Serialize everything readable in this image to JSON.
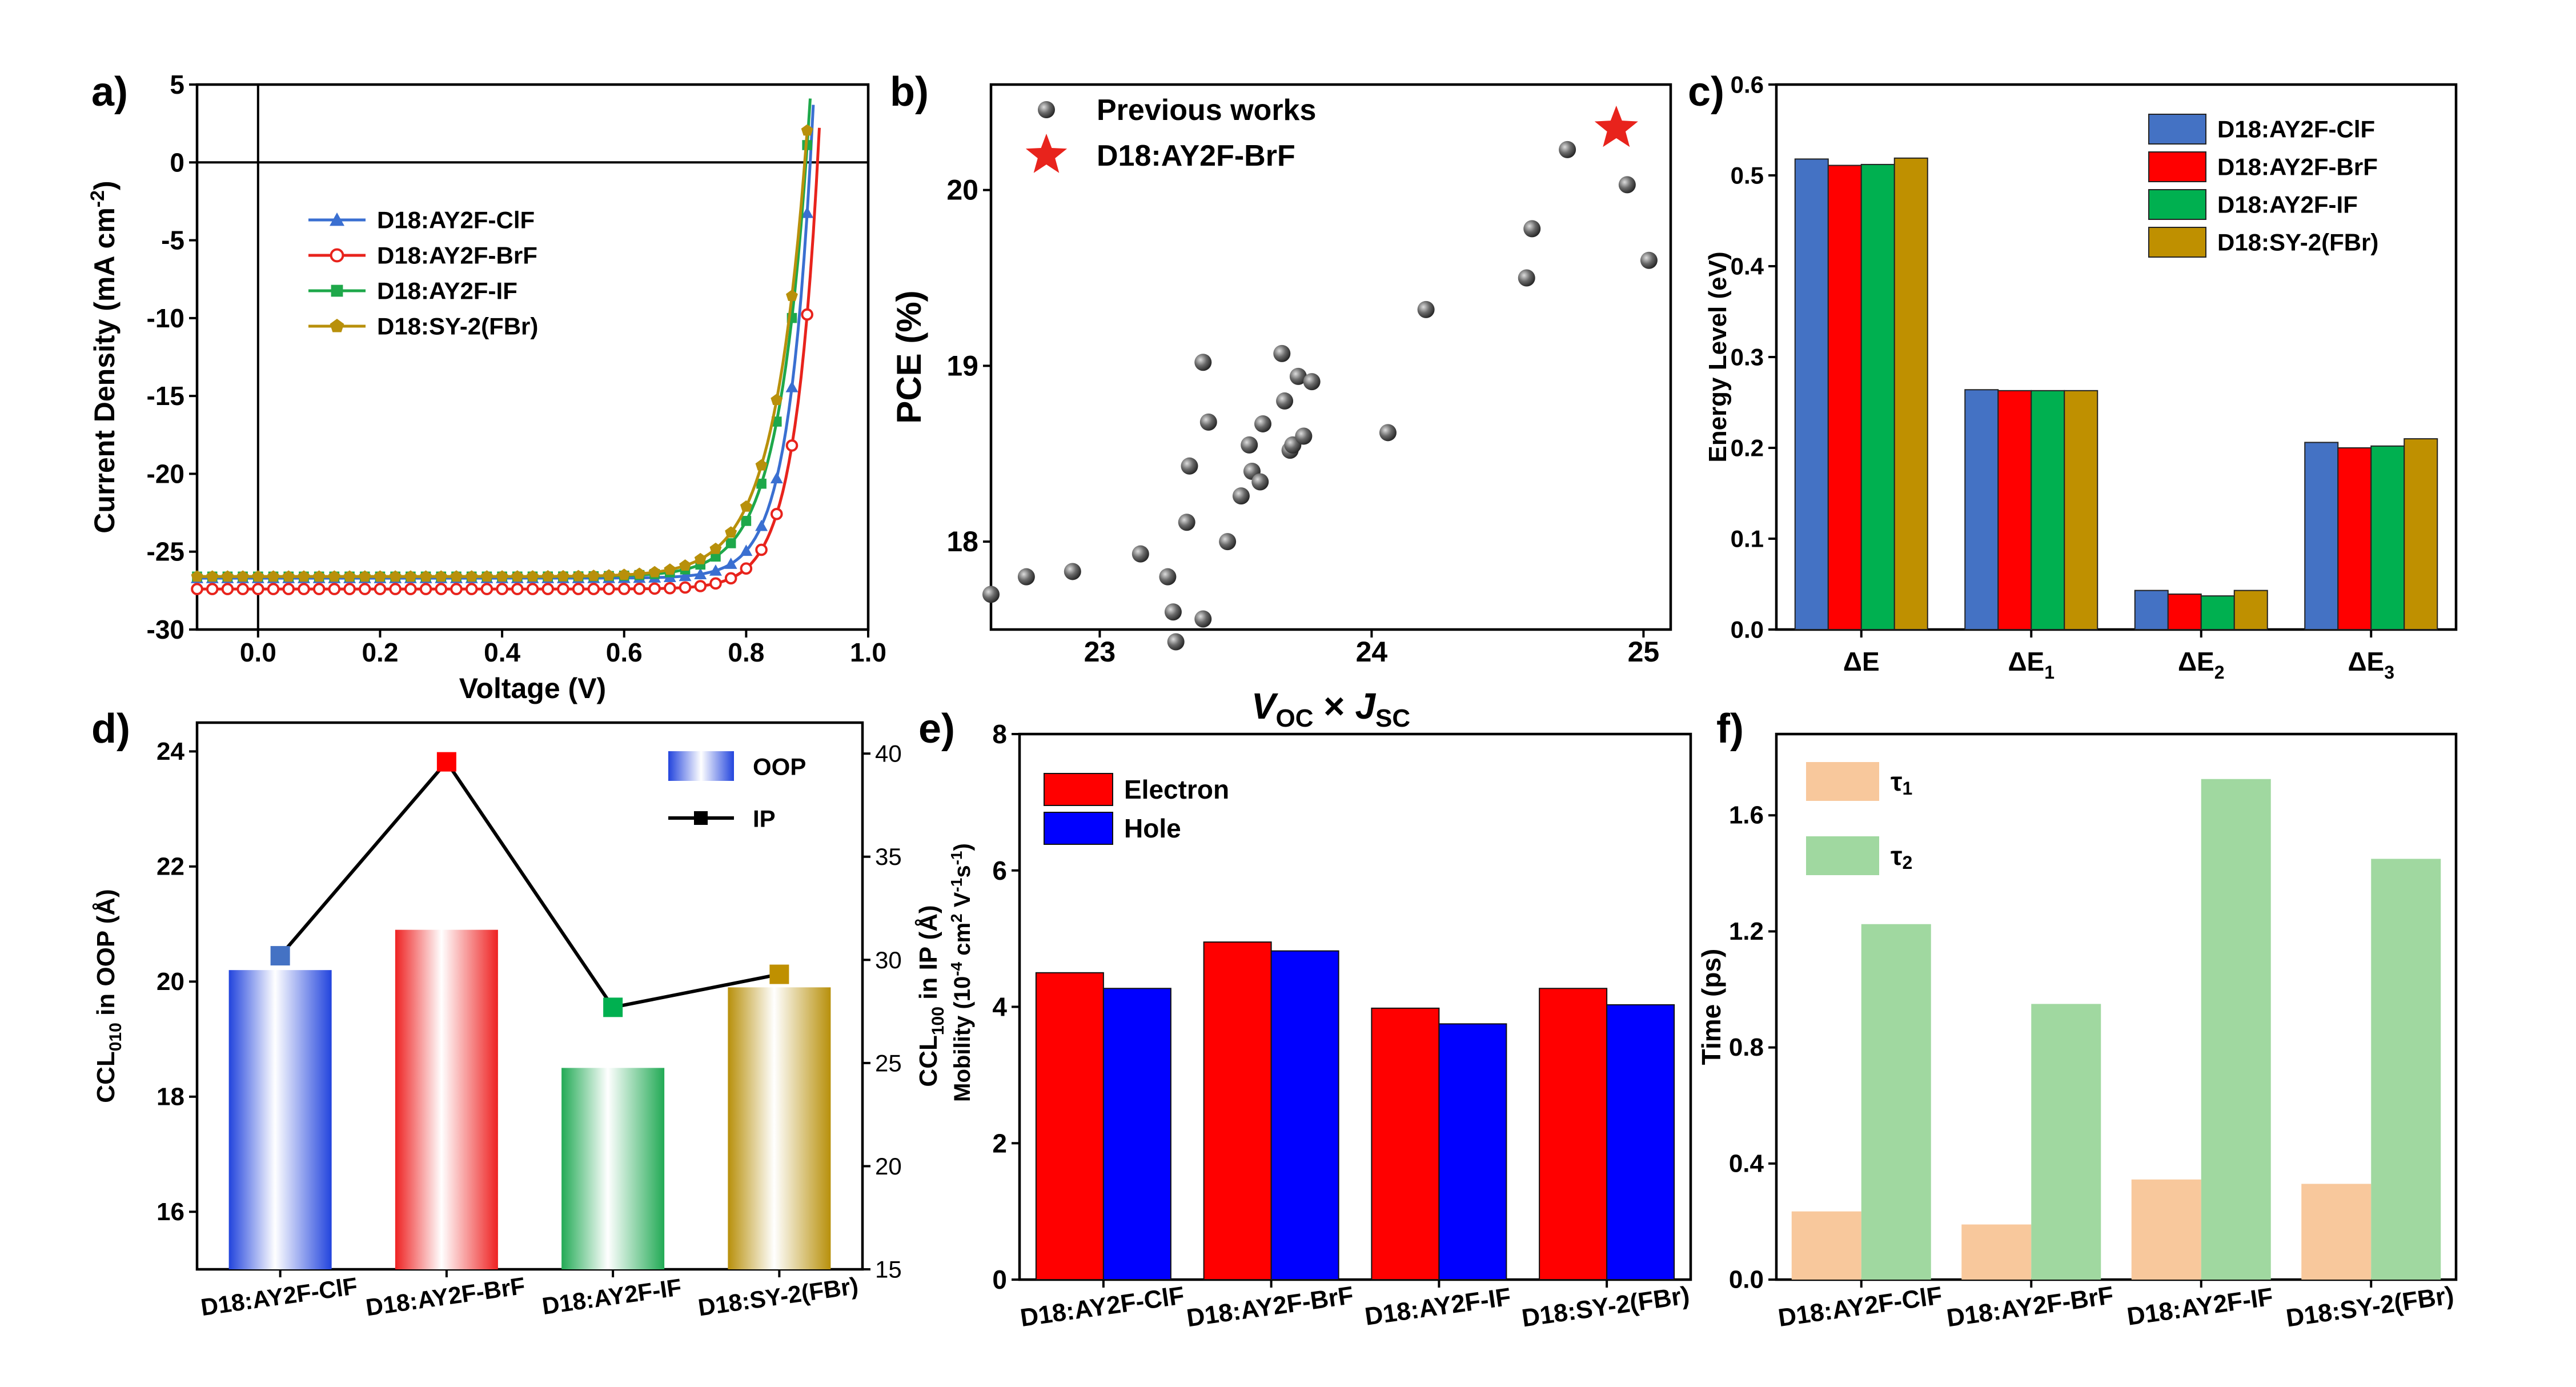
{
  "chart_data": [
    {
      "panel": "a)",
      "type": "line",
      "xlabel": "Voltage (V)",
      "ylabel_parts": [
        "Current Density (mA cm",
        "-2",
        ")"
      ],
      "xlim": [
        -0.1,
        1.0
      ],
      "ylim": [
        -30,
        5
      ],
      "xticks": [
        0.0,
        0.2,
        0.4,
        0.6,
        0.8,
        1.0
      ],
      "xtick_labels": [
        "0.0",
        "0.2",
        "0.4",
        "0.6",
        "0.8",
        "1.0"
      ],
      "yticks": [
        5,
        0,
        -5,
        -10,
        -15,
        -20,
        -25,
        -30
      ],
      "ytick_labels": [
        "5",
        "0",
        "-5",
        "-10",
        "-15",
        "-20",
        "-25",
        "-30"
      ],
      "legend_position": "upper-left",
      "series": [
        {
          "name": "D18:AY2F-ClF",
          "color": "#3a6fd1",
          "marker": "triangle",
          "jsc": -26.7,
          "voc": 0.905,
          "n": 1.5
        },
        {
          "name": "D18:AY2F-BrF",
          "color": "#e8231c",
          "marker": "open-circle",
          "jsc": -27.4,
          "voc": 0.917,
          "n": 1.5
        },
        {
          "name": "D18:AY2F-IF",
          "color": "#1ea84a",
          "marker": "square",
          "jsc": -26.6,
          "voc": 0.898,
          "n": 1.9
        },
        {
          "name": "D18:SY-2(FBr)",
          "color": "#b8900b",
          "marker": "pentagon",
          "jsc": -26.6,
          "voc": 0.896,
          "n": 2.1
        }
      ]
    },
    {
      "panel": "b)",
      "type": "scatter",
      "xlabel_parts": [
        "V",
        "OC",
        " × ",
        "J",
        "SC"
      ],
      "ylabel": "PCE (%)",
      "xlim": [
        22.6,
        25.1
      ],
      "ylim": [
        17.5,
        20.6
      ],
      "xticks": [
        23,
        24,
        25
      ],
      "xtick_labels": [
        "23",
        "24",
        "25"
      ],
      "yticks": [
        18,
        19,
        20
      ],
      "ytick_labels": [
        "18",
        "19",
        "20"
      ],
      "legend_position": "upper-left",
      "series": [
        {
          "name": "Previous works",
          "color": "#555555",
          "points": [
            [
              22.6,
              17.7
            ],
            [
              22.73,
              17.8
            ],
            [
              22.9,
              17.83
            ],
            [
              23.15,
              17.93
            ],
            [
              23.25,
              17.8
            ],
            [
              23.27,
              17.6
            ],
            [
              23.28,
              17.43
            ],
            [
              23.32,
              18.11
            ],
            [
              23.33,
              18.43
            ],
            [
              23.38,
              17.56
            ],
            [
              23.38,
              19.02
            ],
            [
              23.4,
              18.68
            ],
            [
              23.47,
              18.0
            ],
            [
              23.52,
              18.26
            ],
            [
              23.55,
              18.55
            ],
            [
              23.56,
              18.4
            ],
            [
              23.59,
              18.34
            ],
            [
              23.6,
              18.67
            ],
            [
              23.67,
              19.07
            ],
            [
              23.68,
              18.8
            ],
            [
              23.7,
              18.52
            ],
            [
              23.71,
              18.55
            ],
            [
              23.73,
              18.94
            ],
            [
              23.75,
              18.6
            ],
            [
              23.78,
              18.91
            ],
            [
              24.06,
              18.62
            ],
            [
              24.2,
              19.32
            ],
            [
              24.57,
              19.5
            ],
            [
              24.59,
              19.78
            ],
            [
              24.72,
              20.23
            ],
            [
              24.94,
              20.03
            ],
            [
              25.02,
              19.6
            ]
          ]
        },
        {
          "name": "D18:AY2F-BrF",
          "color": "#e8231c",
          "points": [
            [
              24.9,
              20.35
            ]
          ]
        }
      ]
    },
    {
      "panel": "c)",
      "type": "bar",
      "ylabel": "Energy Level (eV)",
      "ylim": [
        0,
        0.6
      ],
      "yticks": [
        0.0,
        0.1,
        0.2,
        0.3,
        0.4,
        0.5,
        0.6
      ],
      "ytick_labels": [
        "0.0",
        "0.1",
        "0.2",
        "0.3",
        "0.4",
        "0.5",
        "0.6"
      ],
      "categories": [
        "ΔE",
        "ΔE1",
        "ΔE2",
        "ΔE3"
      ],
      "category_labels": [
        {
          "main": "ΔE",
          "sub": ""
        },
        {
          "main": "ΔE",
          "sub": "1"
        },
        {
          "main": "ΔE",
          "sub": "2"
        },
        {
          "main": "ΔE",
          "sub": "3"
        }
      ],
      "legend_position": "top-right",
      "series": [
        {
          "name": "D18:AY2F-ClF",
          "color": "#4472c4",
          "values": [
            0.518,
            0.264,
            0.043,
            0.206
          ]
        },
        {
          "name": "D18:AY2F-BrF",
          "color": "#ff0000",
          "values": [
            0.511,
            0.263,
            0.039,
            0.2
          ]
        },
        {
          "name": "D18:AY2F-IF",
          "color": "#00b050",
          "values": [
            0.512,
            0.263,
            0.037,
            0.202
          ]
        },
        {
          "name": "D18:SY-2(FBr)",
          "color": "#bf9000",
          "values": [
            0.519,
            0.263,
            0.043,
            0.21
          ]
        }
      ]
    },
    {
      "panel": "d)",
      "type": "bar",
      "categories": [
        "D18:AY2F-ClF",
        "D18:AY2F-BrF",
        "D18:AY2F-IF",
        "D18:SY-2(FBr)"
      ],
      "ylabel_parts": [
        "CCL",
        "010",
        " in OOP (Å)"
      ],
      "y2label_parts": [
        "CCL",
        "100",
        " in IP (Å)"
      ],
      "ylim": [
        15,
        24.5
      ],
      "y2lim": [
        15,
        41.5
      ],
      "yticks": [
        16,
        18,
        20,
        22,
        24
      ],
      "ytick_labels": [
        "16",
        "18",
        "20",
        "22",
        "24"
      ],
      "y2ticks": [
        15,
        20,
        25,
        30,
        35,
        40
      ],
      "y2tick_labels": [
        "15",
        "20",
        "25",
        "30",
        "35",
        "40"
      ],
      "legend_position": "top-right",
      "colors": [
        "#2244dd",
        "#ee2222",
        "#22aa55",
        "#b8900b"
      ],
      "series": [
        {
          "name": "OOP",
          "axis": "left",
          "values": [
            20.2,
            20.9,
            18.5,
            19.9
          ]
        },
        {
          "name": "IP",
          "axis": "right",
          "values": [
            30.2,
            39.6,
            27.7,
            29.3
          ]
        }
      ]
    },
    {
      "panel": "e)",
      "type": "bar",
      "categories": [
        "D18:AY2F-ClF",
        "D18:AY2F-BrF",
        "D18:AY2F-IF",
        "D18:SY-2(FBr)"
      ],
      "ylabel_parts": [
        "Mobility (10",
        "-4",
        " cm",
        "2",
        " V",
        "-1",
        "s",
        "-1",
        ")"
      ],
      "ylim": [
        0,
        8
      ],
      "yticks": [
        0,
        2,
        4,
        6,
        8
      ],
      "ytick_labels": [
        "0",
        "2",
        "4",
        "6",
        "8"
      ],
      "legend_position": "top-left",
      "series": [
        {
          "name": "Electron",
          "color": "#ff0000",
          "values": [
            4.5,
            4.95,
            3.98,
            4.27
          ]
        },
        {
          "name": "Hole",
          "color": "#0000ff",
          "values": [
            4.27,
            4.82,
            3.75,
            4.03
          ]
        }
      ]
    },
    {
      "panel": "f)",
      "type": "bar",
      "categories": [
        "D18:AY2F-ClF",
        "D18:AY2F-BrF",
        "D18:AY2F-IF",
        "D18:SY-2(FBr)"
      ],
      "ylabel": "Time (ps)",
      "ylim": [
        0,
        1.88
      ],
      "yticks": [
        0.0,
        0.4,
        0.8,
        1.2,
        1.6
      ],
      "ytick_labels": [
        "0.0",
        "0.4",
        "0.8",
        "1.2",
        "1.6"
      ],
      "legend_position": "top-left",
      "series": [
        {
          "name": "τ1",
          "label_main": "τ",
          "label_sub": "1",
          "color": "#f8c89c",
          "values": [
            0.235,
            0.19,
            0.345,
            0.33
          ]
        },
        {
          "name": "τ2",
          "label_main": "τ",
          "label_sub": "2",
          "color": "#a0d8a0",
          "values": [
            1.225,
            0.95,
            1.725,
            1.45
          ]
        }
      ]
    }
  ]
}
